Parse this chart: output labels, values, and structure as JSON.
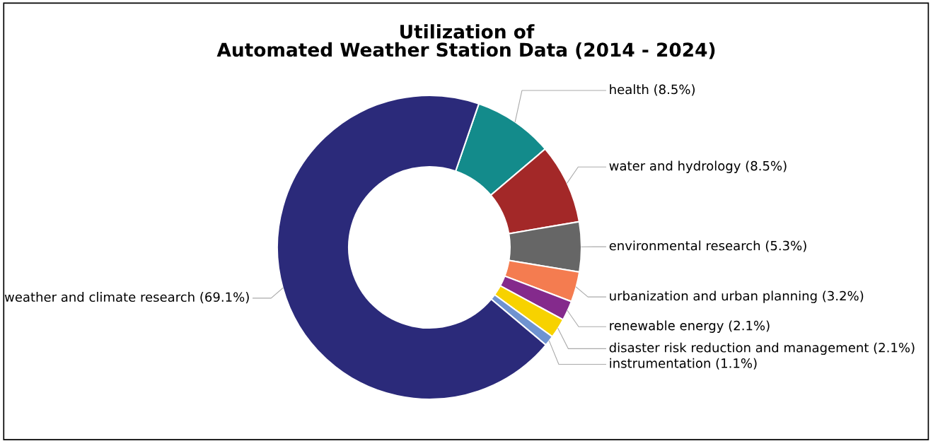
{
  "chart_data": {
    "type": "donut",
    "title": "Utilization of\nAutomated Weather Station Data (2014 - 2024)",
    "categories": [
      "health (8.5%)",
      "water and hydrology (8.5%)",
      "environmental research (5.3%)",
      "urbanization and urban planning (3.2%)",
      "renewable energy (2.1%)",
      "disaster risk reduction and management (2.1%)",
      "instrumentation (1.1%)",
      "weather and climate research (69.1%)"
    ],
    "values": [
      8.5,
      8.5,
      5.3,
      3.2,
      2.1,
      2.1,
      1.1,
      69.1
    ],
    "colors": [
      "#138b8b",
      "#a32828",
      "#666666",
      "#f47c50",
      "#842a8c",
      "#f7d200",
      "#6f93d0",
      "#2b2a7a"
    ],
    "legend": false
  }
}
